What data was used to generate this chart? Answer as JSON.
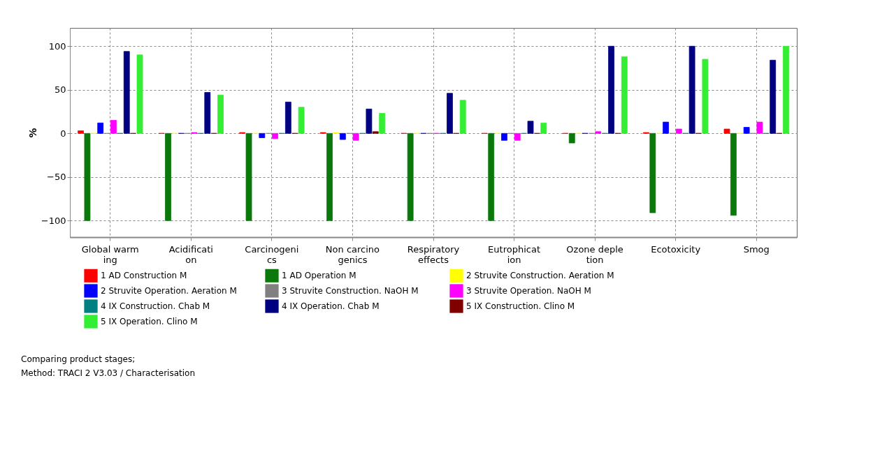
{
  "chart_data": {
    "type": "bar",
    "ylabel": "%",
    "categories": [
      "Global warming",
      "Acidification",
      "Carcinogenics",
      "Non carcinogenics",
      "Respiratory effects",
      "Eutrophication",
      "Ozone depletion",
      "Ecotoxicity",
      "Smog"
    ],
    "series": [
      {
        "name": "1 AD Construction M",
        "color": "#ff0000",
        "values": [
          3,
          0,
          1,
          1,
          0,
          0,
          0,
          1,
          5
        ]
      },
      {
        "name": "1 AD Operation M",
        "color": "#0a780a",
        "values": [
          -100,
          -100,
          -100,
          -100,
          -100,
          -100,
          -11,
          -91,
          -94
        ]
      },
      {
        "name": "2 Struvite Construction. Aeration M",
        "color": "#ffff00",
        "values": [
          0,
          0,
          0,
          1,
          0,
          0,
          0,
          0,
          0
        ]
      },
      {
        "name": "2 Struvite Operation. Aeration M",
        "color": "#0000ff",
        "values": [
          12,
          0,
          -5,
          -7,
          0,
          -8,
          0,
          13,
          7
        ]
      },
      {
        "name": "3 Struvite Construction. NaOH  M",
        "color": "#808080",
        "values": [
          0,
          0,
          0,
          0,
          0,
          0,
          0,
          0,
          0
        ]
      },
      {
        "name": "3 Struvite Operation. NaOH M",
        "color": "#ff00ff",
        "values": [
          15,
          1,
          -6,
          -8,
          0,
          -8,
          2,
          5,
          13
        ]
      },
      {
        "name": "4 IX Construction. Chab M",
        "color": "#008080",
        "values": [
          0,
          0,
          0,
          0,
          0,
          0,
          0,
          0,
          0
        ]
      },
      {
        "name": "4 IX Operation. Chab M",
        "color": "#000080",
        "values": [
          94,
          47,
          36,
          28,
          46,
          14,
          100,
          100,
          84
        ]
      },
      {
        "name": "5 IX Construction. Clino M",
        "color": "#800000",
        "values": [
          0,
          0,
          0,
          2,
          0,
          0,
          0,
          0,
          0
        ]
      },
      {
        "name": "5 IX Operation. Clino M",
        "color": "#33ee33",
        "values": [
          90,
          44,
          30,
          23,
          38,
          12,
          88,
          85,
          100
        ]
      }
    ],
    "ylim": [
      -119,
      121
    ],
    "yticks": [
      -100,
      -50,
      0,
      50,
      100
    ],
    "grid": true,
    "legend": "bottom",
    "annotations": [
      "Comparing product stages;",
      "Method: TRACI 2 V3.03 / Characterisation"
    ]
  }
}
